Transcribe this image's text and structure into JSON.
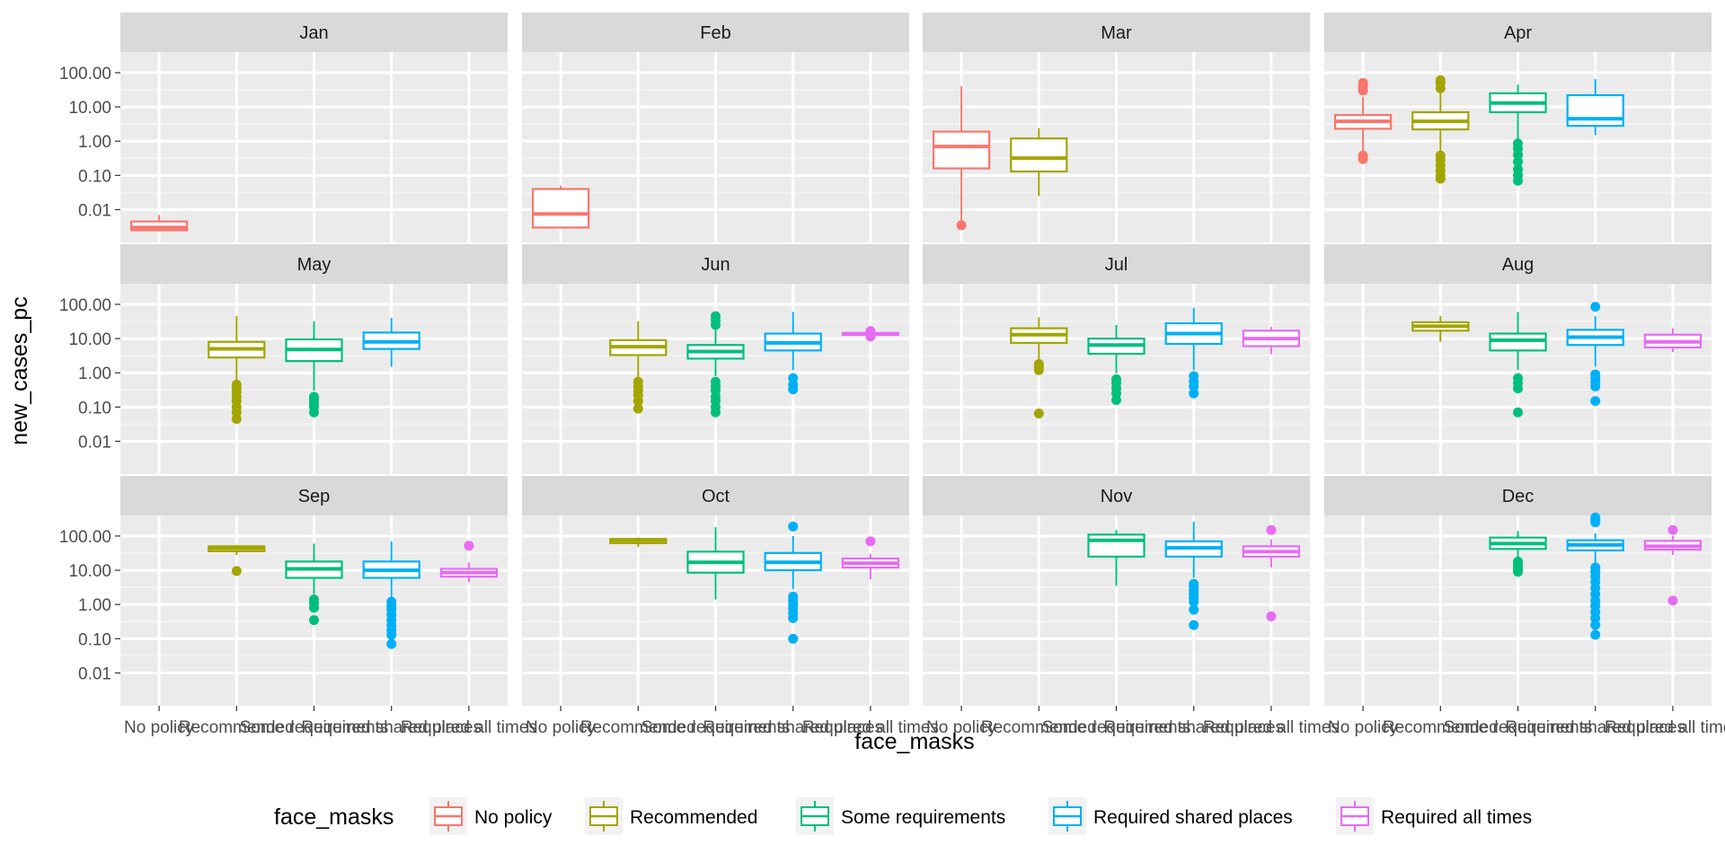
{
  "chart_data": {
    "type": "boxplot",
    "facet_by": "month",
    "y_scale": "log10",
    "ylim": [
      0.0011,
      400
    ],
    "grid": true,
    "legend_position": "bottom",
    "xlabel": "face_masks",
    "ylabel": "new_cases_pc",
    "categories": [
      "No policy",
      "Recommended",
      "Some requirements",
      "Required shared places",
      "Required all times"
    ],
    "y_ticks": [
      0.01,
      0.1,
      1,
      10,
      100
    ],
    "y_tick_labels": [
      "0.01",
      "0.10",
      "1.00",
      "10.00",
      "100.00"
    ],
    "legend": {
      "title": "face_masks",
      "items": [
        {
          "label": "No policy",
          "color": "#F8766D"
        },
        {
          "label": "Recommended",
          "color": "#A3A500"
        },
        {
          "label": "Some requirements",
          "color": "#00BF7D"
        },
        {
          "label": "Required shared places",
          "color": "#00B0F6"
        },
        {
          "label": "Required all times",
          "color": "#E76BF3"
        }
      ]
    },
    "panels": [
      {
        "month": "Jan",
        "boxes": [
          {
            "category": "No policy",
            "min": 0.0025,
            "q1": 0.0025,
            "median": 0.003,
            "q3": 0.0045,
            "max": 0.007,
            "outliers": []
          }
        ]
      },
      {
        "month": "Feb",
        "boxes": [
          {
            "category": "No policy",
            "min": 0.003,
            "q1": 0.003,
            "median": 0.0075,
            "q3": 0.04,
            "max": 0.05,
            "outliers": []
          }
        ]
      },
      {
        "month": "Mar",
        "boxes": [
          {
            "category": "No policy",
            "min": 0.004,
            "q1": 0.16,
            "median": 0.7,
            "q3": 1.9,
            "max": 40,
            "outliers": [
              0.0035
            ]
          },
          {
            "category": "Recommended",
            "min": 0.025,
            "q1": 0.13,
            "median": 0.32,
            "q3": 1.2,
            "max": 2.4,
            "outliers": []
          }
        ]
      },
      {
        "month": "Apr",
        "boxes": [
          {
            "category": "No policy",
            "min": 0.45,
            "q1": 2.3,
            "median": 3.8,
            "q3": 5.8,
            "max": 20,
            "outliers": [
              0.3,
              0.38,
              30,
              40,
              50
            ]
          },
          {
            "category": "Recommended",
            "min": 0.45,
            "q1": 2.2,
            "median": 3.8,
            "q3": 7,
            "max": 25,
            "outliers": [
              0.08,
              0.1,
              0.14,
              0.2,
              0.28,
              0.38,
              35,
              50,
              60
            ]
          },
          {
            "category": "Some requirements",
            "min": 1.0,
            "q1": 7,
            "median": 13,
            "q3": 25,
            "max": 45,
            "outliers": [
              0.07,
              0.1,
              0.15,
              0.25,
              0.4,
              0.6,
              0.85
            ]
          },
          {
            "category": "Required shared places",
            "min": 1.5,
            "q1": 2.8,
            "median": 4.5,
            "q3": 22,
            "max": 65,
            "outliers": []
          }
        ]
      },
      {
        "month": "May",
        "boxes": [
          {
            "category": "Recommended",
            "min": 0.6,
            "q1": 2.8,
            "median": 5,
            "q3": 8,
            "max": 45,
            "outliers": [
              0.045,
              0.07,
              0.1,
              0.15,
              0.2,
              0.28,
              0.35,
              0.45
            ]
          },
          {
            "category": "Some requirements",
            "min": 0.3,
            "q1": 2.2,
            "median": 4.8,
            "q3": 9.5,
            "max": 32,
            "outliers": [
              0.07,
              0.1,
              0.13,
              0.16,
              0.2
            ]
          },
          {
            "category": "Required shared places",
            "min": 1.5,
            "q1": 5,
            "median": 8,
            "q3": 15,
            "max": 40,
            "outliers": []
          }
        ]
      },
      {
        "month": "Jun",
        "boxes": [
          {
            "category": "Recommended",
            "min": 0.7,
            "q1": 3.3,
            "median": 5.8,
            "q3": 9,
            "max": 32,
            "outliers": [
              0.09,
              0.15,
              0.22,
              0.3,
              0.4,
              0.55
            ]
          },
          {
            "category": "Some requirements",
            "min": 0.8,
            "q1": 2.6,
            "median": 4.2,
            "q3": 6.5,
            "max": 20,
            "outliers": [
              0.07,
              0.1,
              0.15,
              0.2,
              0.3,
              0.4,
              0.55,
              25,
              35,
              45
            ]
          },
          {
            "category": "Required shared places",
            "min": 1.2,
            "q1": 4.5,
            "median": 7.5,
            "q3": 14,
            "max": 60,
            "outliers": [
              0.33,
              0.45,
              0.7
            ]
          },
          {
            "category": "Required all times",
            "min": 12,
            "q1": 12.8,
            "median": 13.8,
            "q3": 14.5,
            "max": 15.5,
            "outliers": [
              11.5,
              16.5
            ]
          }
        ]
      },
      {
        "month": "Jul",
        "boxes": [
          {
            "category": "Recommended",
            "min": 2.5,
            "q1": 7.5,
            "median": 13,
            "q3": 20,
            "max": 42,
            "outliers": [
              0.065,
              1.2,
              1.5,
              1.8
            ]
          },
          {
            "category": "Some requirements",
            "min": 1.0,
            "q1": 3.6,
            "median": 6.5,
            "q3": 10,
            "max": 25,
            "outliers": [
              0.16,
              0.25,
              0.35,
              0.5,
              0.65
            ]
          },
          {
            "category": "Required shared places",
            "min": 1.2,
            "q1": 7,
            "median": 14,
            "q3": 28,
            "max": 80,
            "outliers": [
              0.25,
              0.4,
              0.55,
              0.8
            ]
          },
          {
            "category": "Required all times",
            "min": 3.5,
            "q1": 6,
            "median": 10,
            "q3": 17,
            "max": 22,
            "outliers": []
          }
        ]
      },
      {
        "month": "Aug",
        "boxes": [
          {
            "category": "Recommended",
            "min": 8,
            "q1": 17,
            "median": 23,
            "q3": 30,
            "max": 45,
            "outliers": []
          },
          {
            "category": "Some requirements",
            "min": 1.2,
            "q1": 4.5,
            "median": 9,
            "q3": 14,
            "max": 60,
            "outliers": [
              0.07,
              0.35,
              0.5,
              0.7
            ]
          },
          {
            "category": "Required shared places",
            "min": 1.5,
            "q1": 6.5,
            "median": 11,
            "q3": 18,
            "max": 45,
            "outliers": [
              0.15,
              0.4,
              0.55,
              0.7,
              0.9,
              85
            ]
          },
          {
            "category": "Required all times",
            "min": 4,
            "q1": 5.5,
            "median": 8,
            "q3": 13,
            "max": 20,
            "outliers": []
          }
        ]
      },
      {
        "month": "Sep",
        "boxes": [
          {
            "category": "Recommended",
            "min": 28,
            "q1": 36,
            "median": 44,
            "q3": 50,
            "max": 55,
            "outliers": [
              9.5
            ]
          },
          {
            "category": "Some requirements",
            "min": 2,
            "q1": 6,
            "median": 11,
            "q3": 18,
            "max": 60,
            "outliers": [
              0.35,
              0.8,
              1.1,
              1.4
            ]
          },
          {
            "category": "Required shared places",
            "min": 1.6,
            "q1": 6,
            "median": 10,
            "q3": 18,
            "max": 70,
            "outliers": [
              0.07,
              0.13,
              0.18,
              0.25,
              0.35,
              0.5,
              0.7,
              0.9,
              1.2
            ]
          },
          {
            "category": "Required all times",
            "min": 4.5,
            "q1": 6.5,
            "median": 8.5,
            "q3": 11,
            "max": 17,
            "outliers": [
              52
            ]
          }
        ]
      },
      {
        "month": "Oct",
        "boxes": [
          {
            "category": "Recommended",
            "min": 48,
            "q1": 62,
            "median": 75,
            "q3": 82,
            "max": 90,
            "outliers": []
          },
          {
            "category": "Some requirements",
            "min": 1.4,
            "q1": 8.5,
            "median": 17,
            "q3": 35,
            "max": 180,
            "outliers": []
          },
          {
            "category": "Required shared places",
            "min": 2.8,
            "q1": 10,
            "median": 17,
            "q3": 32,
            "max": 100,
            "outliers": [
              0.1,
              0.4,
              0.55,
              0.75,
              1.0,
              1.3,
              1.7,
              190
            ]
          },
          {
            "category": "Required all times",
            "min": 5.5,
            "q1": 12,
            "median": 16,
            "q3": 22,
            "max": 30,
            "outliers": [
              70
            ]
          }
        ]
      },
      {
        "month": "Nov",
        "boxes": [
          {
            "category": "Some requirements",
            "min": 3.5,
            "q1": 25,
            "median": 75,
            "q3": 110,
            "max": 150,
            "outliers": []
          },
          {
            "category": "Required shared places",
            "min": 6,
            "q1": 25,
            "median": 45,
            "q3": 70,
            "max": 260,
            "outliers": [
              0.25,
              0.7,
              1.2,
              1.6,
              2,
              2.6,
              3.3,
              4
            ]
          },
          {
            "category": "Required all times",
            "min": 12,
            "q1": 25,
            "median": 35,
            "q3": 50,
            "max": 80,
            "outliers": [
              0.45,
              150
            ]
          }
        ]
      },
      {
        "month": "Dec",
        "boxes": [
          {
            "category": "Some requirements",
            "min": 20,
            "q1": 42,
            "median": 60,
            "q3": 90,
            "max": 140,
            "outliers": [
              9,
              11,
              13,
              15,
              18
            ]
          },
          {
            "category": "Required shared places",
            "min": 14,
            "q1": 38,
            "median": 55,
            "q3": 75,
            "max": 120,
            "outliers": [
              0.13,
              0.25,
              0.4,
              0.6,
              0.9,
              1.3,
              2,
              3,
              4.5,
              6.5,
              9,
              12,
              250,
              300,
              350
            ]
          },
          {
            "category": "Required all times",
            "min": 28,
            "q1": 40,
            "median": 50,
            "q3": 72,
            "max": 100,
            "outliers": [
              1.3,
              150
            ]
          }
        ]
      }
    ]
  }
}
